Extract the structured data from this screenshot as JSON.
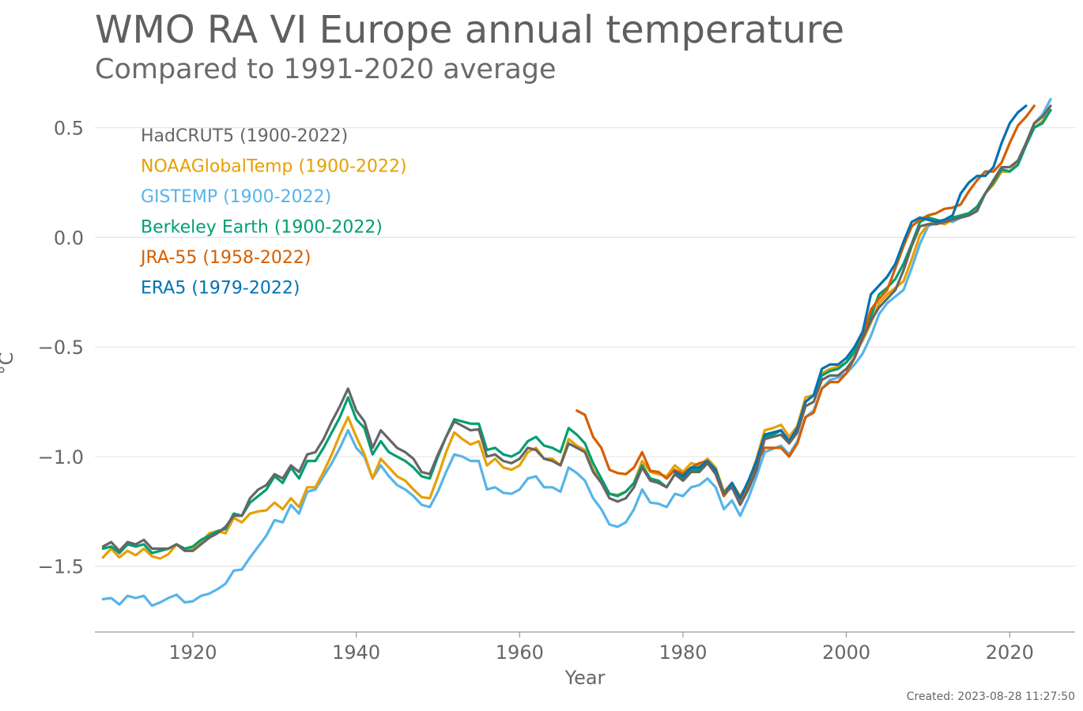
{
  "chart_data": {
    "type": "line",
    "title": "WMO RA VI Europe annual temperature",
    "subtitle": "Compared to 1991-2020 average",
    "xlabel": "Year",
    "ylabel": "°C",
    "xlim": [
      1908,
      2028
    ],
    "ylim": [
      -1.8,
      0.65
    ],
    "xticks": [
      1920,
      1940,
      1960,
      1980,
      2000,
      2020
    ],
    "yticks": [
      0.5,
      0.0,
      -0.5,
      -1.0,
      -1.5
    ],
    "ytick_labels": [
      "0.5",
      "0.0",
      "−0.5",
      "−1.0",
      "−1.5"
    ],
    "grid": "horizontal",
    "legend": "top-left",
    "series": [
      {
        "name": "GISTEMP (1900-2022)",
        "color": "#56b4e9",
        "start": 1909,
        "values": [
          -1.65,
          -1.645,
          -1.675,
          -1.635,
          -1.645,
          -1.635,
          -1.68,
          -1.665,
          -1.645,
          -1.63,
          -1.665,
          -1.66,
          -1.635,
          -1.625,
          -1.605,
          -1.58,
          -1.52,
          -1.515,
          -1.46,
          -1.41,
          -1.36,
          -1.29,
          -1.3,
          -1.22,
          -1.26,
          -1.16,
          -1.15,
          -1.09,
          -1.03,
          -0.96,
          -0.88,
          -0.96,
          -1.0,
          -1.1,
          -1.04,
          -1.09,
          -1.13,
          -1.15,
          -1.18,
          -1.22,
          -1.23,
          -1.16,
          -1.07,
          -0.99,
          -1.0,
          -1.02,
          -1.02,
          -1.15,
          -1.14,
          -1.165,
          -1.17,
          -1.15,
          -1.1,
          -1.09,
          -1.14,
          -1.14,
          -1.16,
          -1.05,
          -1.075,
          -1.11,
          -1.19,
          -1.24,
          -1.31,
          -1.32,
          -1.3,
          -1.24,
          -1.15,
          -1.21,
          -1.215,
          -1.23,
          -1.17,
          -1.18,
          -1.14,
          -1.13,
          -1.1,
          -1.14,
          -1.24,
          -1.2,
          -1.27,
          -1.19,
          -1.09,
          -0.98,
          -0.965,
          -0.95,
          -0.99,
          -0.93,
          -0.82,
          -0.79,
          -0.69,
          -0.65,
          -0.64,
          -0.62,
          -0.58,
          -0.53,
          -0.45,
          -0.35,
          -0.3,
          -0.27,
          -0.24,
          -0.14,
          -0.03,
          0.05,
          0.07,
          0.08,
          0.07,
          0.09,
          0.1,
          0.12,
          0.2,
          0.25,
          0.3,
          0.3,
          0.34,
          0.43,
          0.52,
          0.56,
          0.63
        ]
      },
      {
        "name": "NOAAGlobalTemp (1900-2022)",
        "color": "#e6a000",
        "start": 1909,
        "values": [
          -1.46,
          -1.42,
          -1.46,
          -1.43,
          -1.45,
          -1.42,
          -1.455,
          -1.465,
          -1.445,
          -1.4,
          -1.42,
          -1.42,
          -1.39,
          -1.35,
          -1.34,
          -1.35,
          -1.28,
          -1.3,
          -1.26,
          -1.25,
          -1.245,
          -1.21,
          -1.24,
          -1.19,
          -1.23,
          -1.14,
          -1.14,
          -1.07,
          -0.99,
          -0.9,
          -0.82,
          -0.91,
          -0.99,
          -1.1,
          -1.01,
          -1.05,
          -1.09,
          -1.11,
          -1.15,
          -1.185,
          -1.19,
          -1.09,
          -0.98,
          -0.89,
          -0.92,
          -0.945,
          -0.93,
          -1.04,
          -1.01,
          -1.05,
          -1.06,
          -1.04,
          -0.98,
          -0.96,
          -1.01,
          -1.01,
          -1.04,
          -0.92,
          -0.95,
          -0.97,
          -1.06,
          -1.11,
          -1.17,
          -1.175,
          -1.16,
          -1.12,
          -1.02,
          -1.07,
          -1.08,
          -1.09,
          -1.04,
          -1.07,
          -1.03,
          -1.04,
          -1.01,
          -1.05,
          -1.16,
          -1.12,
          -1.18,
          -1.12,
          -1.01,
          -0.88,
          -0.87,
          -0.855,
          -0.91,
          -0.86,
          -0.73,
          -0.72,
          -0.62,
          -0.6,
          -0.59,
          -0.57,
          -0.53,
          -0.47,
          -0.39,
          -0.3,
          -0.26,
          -0.23,
          -0.2,
          -0.1,
          0.01,
          0.06,
          0.07,
          0.06,
          0.08,
          0.09,
          0.1,
          0.13,
          0.2,
          0.24,
          0.3,
          0.3,
          0.34,
          0.43,
          0.5,
          0.53,
          0.58
        ]
      },
      {
        "name": "Berkeley Earth (1900-2022)",
        "color": "#009e73",
        "start": 1909,
        "values": [
          -1.42,
          -1.41,
          -1.44,
          -1.4,
          -1.41,
          -1.4,
          -1.44,
          -1.43,
          -1.42,
          -1.4,
          -1.42,
          -1.41,
          -1.38,
          -1.36,
          -1.34,
          -1.33,
          -1.26,
          -1.27,
          -1.21,
          -1.18,
          -1.15,
          -1.09,
          -1.12,
          -1.05,
          -1.1,
          -1.02,
          -1.02,
          -0.96,
          -0.89,
          -0.82,
          -0.73,
          -0.83,
          -0.87,
          -0.99,
          -0.93,
          -0.98,
          -1.0,
          -1.02,
          -1.05,
          -1.09,
          -1.1,
          -1.0,
          -0.91,
          -0.83,
          -0.84,
          -0.85,
          -0.85,
          -0.97,
          -0.96,
          -0.99,
          -1.0,
          -0.98,
          -0.93,
          -0.91,
          -0.95,
          -0.96,
          -0.98,
          -0.87,
          -0.9,
          -0.94,
          -1.03,
          -1.1,
          -1.17,
          -1.18,
          -1.16,
          -1.12,
          -1.04,
          -1.1,
          -1.11,
          -1.14,
          -1.08,
          -1.1,
          -1.06,
          -1.06,
          -1.03,
          -1.07,
          -1.18,
          -1.13,
          -1.2,
          -1.13,
          -1.03,
          -0.91,
          -0.9,
          -0.88,
          -0.93,
          -0.87,
          -0.75,
          -0.72,
          -0.63,
          -0.61,
          -0.6,
          -0.57,
          -0.52,
          -0.45,
          -0.36,
          -0.26,
          -0.23,
          -0.19,
          -0.12,
          -0.03,
          0.07,
          0.09,
          0.08,
          0.07,
          0.09,
          0.1,
          0.11,
          0.14,
          0.2,
          0.25,
          0.31,
          0.3,
          0.33,
          0.42,
          0.5,
          0.52,
          0.58
        ]
      },
      {
        "name": "JRA-55 (1958-2022)",
        "color": "#d55e00",
        "start": 1967,
        "values": [
          -0.79,
          -0.81,
          -0.91,
          -0.96,
          -1.06,
          -1.075,
          -1.08,
          -1.05,
          -0.98,
          -1.065,
          -1.07,
          -1.1,
          -1.06,
          -1.08,
          -1.05,
          -1.03,
          -1.02,
          -1.08,
          -1.18,
          -1.13,
          -1.2,
          -1.12,
          -1.03,
          -0.96,
          -0.96,
          -0.96,
          -1.0,
          -0.94,
          -0.82,
          -0.8,
          -0.69,
          -0.66,
          -0.66,
          -0.62,
          -0.55,
          -0.45,
          -0.33,
          -0.28,
          -0.24,
          -0.14,
          -0.04,
          0.05,
          0.08,
          0.1,
          0.11,
          0.13,
          0.135,
          0.15,
          0.21,
          0.26,
          0.3,
          0.3,
          0.34,
          0.43,
          0.51,
          0.55,
          0.6
        ]
      },
      {
        "name": "ERA5 (1979-2022)",
        "color": "#0072b2",
        "start": 1979,
        "values": [
          -1.07,
          -1.09,
          -1.05,
          -1.05,
          -1.02,
          -1.06,
          -1.17,
          -1.12,
          -1.19,
          -1.11,
          -1.02,
          -0.9,
          -0.89,
          -0.88,
          -0.93,
          -0.87,
          -0.75,
          -0.72,
          -0.6,
          -0.58,
          -0.58,
          -0.55,
          -0.5,
          -0.43,
          -0.26,
          -0.22,
          -0.18,
          -0.12,
          -0.02,
          0.07,
          0.09,
          0.08,
          0.07,
          0.08,
          0.1,
          0.2,
          0.25,
          0.28,
          0.28,
          0.32,
          0.43,
          0.52,
          0.57,
          0.6
        ]
      },
      {
        "name": "HadCRUT5 (1900-2022)",
        "color": "#666666",
        "start": 1909,
        "values": [
          -1.41,
          -1.39,
          -1.43,
          -1.39,
          -1.4,
          -1.38,
          -1.42,
          -1.42,
          -1.42,
          -1.4,
          -1.43,
          -1.43,
          -1.4,
          -1.37,
          -1.35,
          -1.32,
          -1.27,
          -1.27,
          -1.19,
          -1.15,
          -1.13,
          -1.08,
          -1.1,
          -1.04,
          -1.07,
          -0.99,
          -0.98,
          -0.92,
          -0.84,
          -0.77,
          -0.69,
          -0.79,
          -0.84,
          -0.96,
          -0.88,
          -0.92,
          -0.96,
          -0.98,
          -1.01,
          -1.07,
          -1.08,
          -0.99,
          -0.91,
          -0.84,
          -0.86,
          -0.88,
          -0.875,
          -1.0,
          -0.99,
          -1.02,
          -1.03,
          -1.01,
          -0.96,
          -0.97,
          -1.01,
          -1.02,
          -1.04,
          -0.94,
          -0.96,
          -0.98,
          -1.07,
          -1.12,
          -1.19,
          -1.205,
          -1.19,
          -1.14,
          -1.05,
          -1.11,
          -1.12,
          -1.14,
          -1.08,
          -1.11,
          -1.07,
          -1.07,
          -1.03,
          -1.08,
          -1.17,
          -1.14,
          -1.22,
          -1.15,
          -1.06,
          -0.92,
          -0.91,
          -0.9,
          -0.94,
          -0.89,
          -0.77,
          -0.75,
          -0.65,
          -0.63,
          -0.63,
          -0.6,
          -0.55,
          -0.46,
          -0.38,
          -0.32,
          -0.28,
          -0.24,
          -0.15,
          -0.04,
          0.05,
          0.06,
          0.06,
          0.07,
          0.08,
          0.09,
          0.1,
          0.12,
          0.2,
          0.26,
          0.32,
          0.32,
          0.35,
          0.43,
          0.52,
          0.55,
          0.6
        ]
      }
    ],
    "legend_order": [
      "HadCRUT5 (1900-2022)",
      "NOAAGlobalTemp (1900-2022)",
      "GISTEMP (1900-2022)",
      "Berkeley Earth (1900-2022)",
      "JRA-55 (1958-2022)",
      "ERA5 (1979-2022)"
    ],
    "created": "Created: 2023-08-28 11:27:50"
  }
}
